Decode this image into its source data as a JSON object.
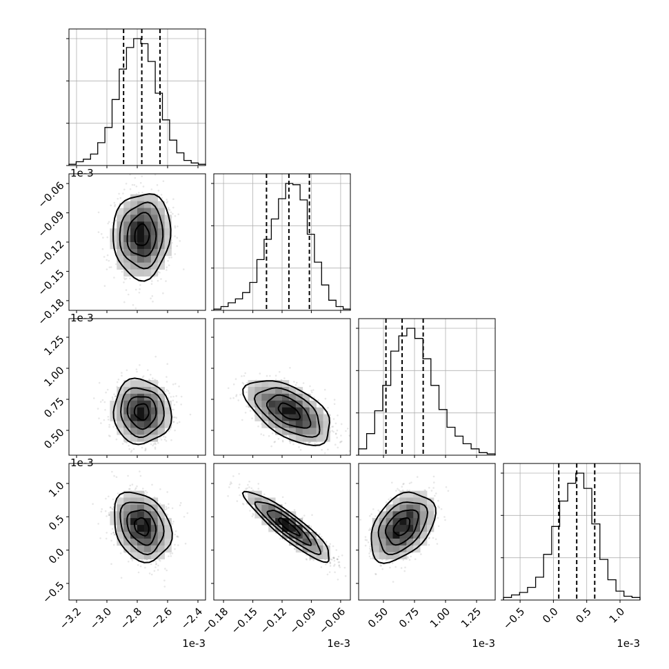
{
  "chart_data": {
    "type": "corner",
    "parameters": [
      {
        "range": [
          -3.25,
          -2.35
        ],
        "scale_label": "1e-3",
        "ticks": [
          -3.2,
          -3.0,
          -2.8,
          -2.6,
          -2.4
        ],
        "tick_labels": [
          "−3.2",
          "−3.0",
          "−2.8",
          "−2.6",
          "−2.4"
        ],
        "quantiles": [
          -2.89,
          -2.77,
          -2.65
        ],
        "sigma": 0.095
      },
      {
        "range": [
          -0.19,
          -0.05
        ],
        "scale_label": "1e-3",
        "ticks": [
          -0.18,
          -0.15,
          -0.12,
          -0.09,
          -0.06
        ],
        "tick_labels": [
          "−0.18",
          "−0.15",
          "−0.12",
          "−0.09",
          "−0.06"
        ],
        "quantiles": [
          -0.136,
          -0.113,
          -0.092
        ],
        "sigma": 0.022
      },
      {
        "range": [
          0.3,
          1.4
        ],
        "scale_label": "1e-3",
        "ticks": [
          0.5,
          0.75,
          1.0,
          1.25
        ],
        "tick_labels": [
          "0.50",
          "0.75",
          "1.00",
          "1.25"
        ],
        "quantiles": [
          0.52,
          0.65,
          0.82
        ],
        "sigma": 0.13
      },
      {
        "range": [
          -0.75,
          1.3
        ],
        "scale_label": "1e-3",
        "ticks": [
          -0.5,
          0.0,
          0.5,
          1.0
        ],
        "tick_labels": [
          "−0.5",
          "0.0",
          "0.5",
          "1.0"
        ],
        "quantiles": [
          0.08,
          0.35,
          0.62
        ],
        "sigma": 0.26
      }
    ],
    "histograms": [
      {
        "counts": [
          1,
          3,
          5,
          9,
          18,
          30,
          52,
          76,
          93,
          100,
          96,
          82,
          57,
          36,
          20,
          10,
          4,
          2,
          1
        ]
      },
      {
        "counts": [
          1,
          3,
          6,
          9,
          14,
          22,
          40,
          56,
          72,
          88,
          100,
          99,
          87,
          60,
          38,
          20,
          8,
          3,
          1
        ]
      },
      {
        "counts": [
          5,
          17,
          35,
          55,
          82,
          94,
          100,
          92,
          76,
          55,
          36,
          22,
          15,
          9,
          5,
          2,
          1
        ]
      },
      {
        "counts": [
          2,
          4,
          6,
          10,
          18,
          36,
          58,
          78,
          92,
          100,
          88,
          60,
          32,
          16,
          7,
          3,
          2
        ]
      }
    ],
    "correlations": [
      [
        1,
        0.05,
        -0.05,
        -0.25
      ],
      [
        0.05,
        1,
        -0.55,
        -0.9
      ],
      [
        -0.05,
        -0.55,
        1,
        0.4
      ],
      [
        -0.25,
        -0.9,
        0.4,
        1
      ]
    ],
    "contour_levels_sigma": [
      0.5,
      1.0,
      1.5,
      2.0
    ],
    "grid": true
  }
}
